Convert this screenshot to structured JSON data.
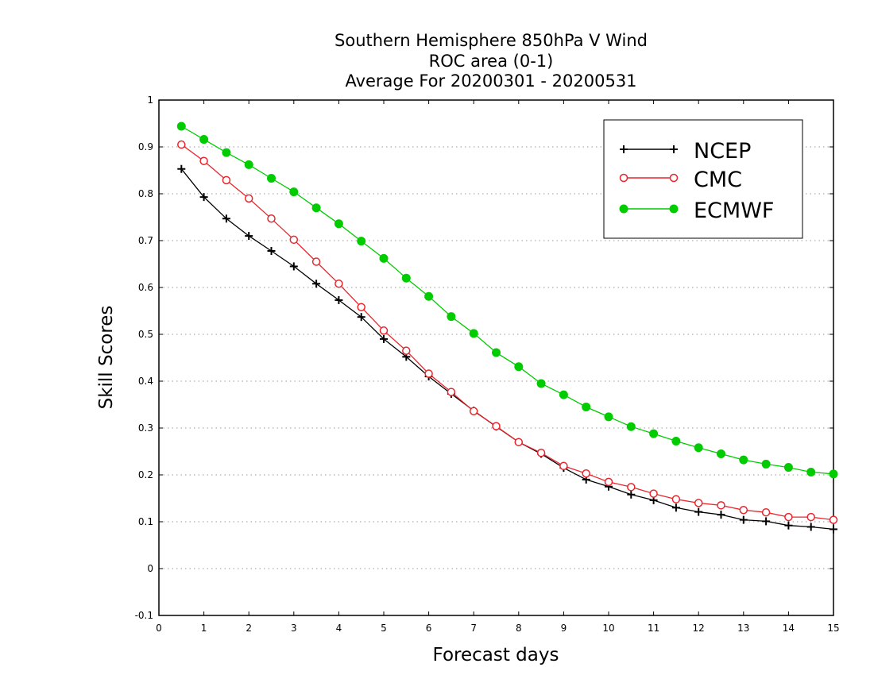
{
  "chart_data": {
    "type": "line",
    "title": [
      "Southern Hemisphere 850hPa V Wind",
      "ROC area (0-1)",
      "Average For 20200301 - 20200531"
    ],
    "xlabel": "Forecast days",
    "ylabel": "Skill Scores",
    "xlim": [
      0,
      15
    ],
    "ylim": [
      -0.1,
      1
    ],
    "xticks": [
      "0",
      "1",
      "2",
      "3",
      "4",
      "5",
      "6",
      "7",
      "8",
      "9",
      "10",
      "11",
      "12",
      "13",
      "14",
      "15"
    ],
    "yticks": [
      "-0.1",
      "0",
      "0.1",
      "0.2",
      "0.3",
      "0.4",
      "0.5",
      "0.6",
      "0.7",
      "0.8",
      "0.9",
      "1"
    ],
    "grid": "horizontal dotted",
    "legend_position": "top-right",
    "x": [
      0.5,
      1,
      1.5,
      2,
      2.5,
      3,
      3.5,
      4,
      4.5,
      5,
      5.5,
      6,
      6.5,
      7,
      7.5,
      8,
      8.5,
      9,
      9.5,
      10,
      10.5,
      11,
      11.5,
      12,
      12.5,
      13,
      13.5,
      14,
      14.5,
      15
    ],
    "series": [
      {
        "name": "NCEP",
        "color": "#000000",
        "marker": "plus",
        "values": [
          0.853,
          0.793,
          0.747,
          0.71,
          0.678,
          0.645,
          0.608,
          0.573,
          0.537,
          0.49,
          0.452,
          0.41,
          0.373,
          0.337,
          0.303,
          0.27,
          0.245,
          0.215,
          0.19,
          0.175,
          0.158,
          0.146,
          0.13,
          0.121,
          0.115,
          0.104,
          0.101,
          0.092,
          0.089,
          0.084
        ]
      },
      {
        "name": "CMC",
        "color": "#e8262d",
        "marker": "open-circle",
        "values": [
          0.905,
          0.87,
          0.829,
          0.79,
          0.747,
          0.702,
          0.655,
          0.608,
          0.558,
          0.508,
          0.465,
          0.416,
          0.377,
          0.336,
          0.304,
          0.27,
          0.247,
          0.219,
          0.203,
          0.185,
          0.174,
          0.16,
          0.148,
          0.14,
          0.135,
          0.125,
          0.12,
          0.11,
          0.11,
          0.104
        ]
      },
      {
        "name": "ECMWF",
        "color": "#00cc00",
        "marker": "filled-circle",
        "values": [
          0.944,
          0.916,
          0.888,
          0.862,
          0.833,
          0.804,
          0.77,
          0.736,
          0.699,
          0.662,
          0.62,
          0.581,
          0.538,
          0.502,
          0.461,
          0.431,
          0.395,
          0.371,
          0.345,
          0.324,
          0.303,
          0.288,
          0.272,
          0.258,
          0.245,
          0.232,
          0.223,
          0.216,
          0.206,
          0.202
        ]
      }
    ]
  }
}
